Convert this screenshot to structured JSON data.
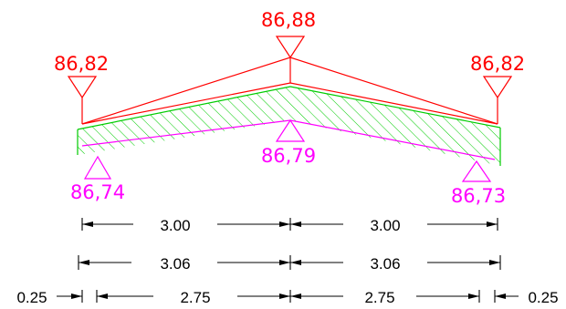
{
  "colors": {
    "top_levels": "#ff0000",
    "bottom_levels": "#ff00ff",
    "hatch": "#00cc00",
    "dimension": "#000000"
  },
  "levels": {
    "top_left": "86,82",
    "top_center": "86,88",
    "top_right": "86,82",
    "bottom_left": "86,74",
    "bottom_center": "86,79",
    "bottom_right": "86,73"
  },
  "dimensions": {
    "row1": {
      "left": "3.00",
      "right": "3.00"
    },
    "row2": {
      "left": "3.06",
      "right": "3.06"
    },
    "row3": {
      "edge_left": "0.25",
      "left": "2.75",
      "right": "2.75",
      "edge_right": "0.25"
    }
  }
}
